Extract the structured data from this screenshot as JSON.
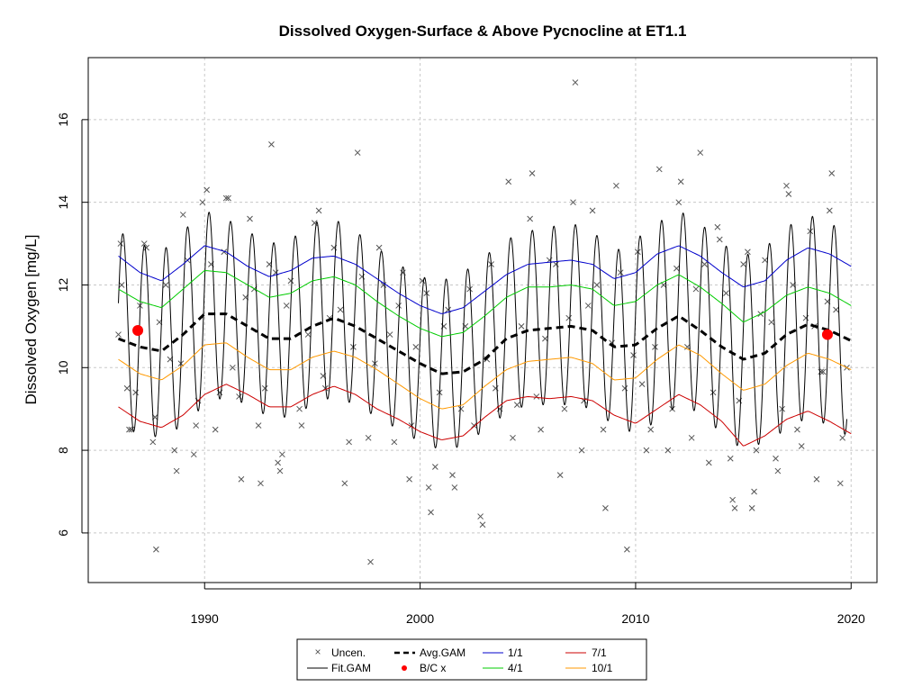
{
  "chart_data": {
    "type": "line",
    "title": "Dissolved Oxygen-Surface & Above Pycnocline at ET1.1",
    "xlabel": "",
    "ylabel": "Dissolved Oxygen [mg/L]",
    "xlim": [
      1984.6,
      2021.2
    ],
    "ylim": [
      4.8,
      17.5
    ],
    "x_ticks": [
      1990,
      2000,
      2010,
      2020
    ],
    "y_ticks": [
      6,
      8,
      10,
      12,
      14,
      16
    ],
    "grid": true,
    "legend_position": "bottom",
    "legend": [
      {
        "label": "Uncen.",
        "marker": "x",
        "color": "#555555"
      },
      {
        "label": "Fit.GAM",
        "marker": "line",
        "color": "#000000"
      },
      {
        "label": "Avg.GAM",
        "marker": "dashed",
        "color": "#000000"
      },
      {
        "label": "B/C x",
        "marker": "dot",
        "color": "#ff0000"
      },
      {
        "label": "1/1",
        "marker": "line",
        "color": "#0000cc"
      },
      {
        "label": "4/1",
        "marker": "line",
        "color": "#00cc00"
      },
      {
        "label": "7/1",
        "marker": "line",
        "color": "#cc0000"
      },
      {
        "label": "10/1",
        "marker": "line",
        "color": "#ff9900"
      }
    ],
    "series": [
      {
        "name": "Avg.GAM",
        "style": "dashed",
        "color": "#000000",
        "x": [
          1986,
          1987,
          1988,
          1989,
          1990,
          1991,
          1992,
          1993,
          1994,
          1995,
          1996,
          1997,
          1998,
          1999,
          2000,
          2001,
          2002,
          2003,
          2004,
          2005,
          2006,
          2007,
          2008,
          2009,
          2010,
          2011,
          2012,
          2013,
          2014,
          2015,
          2016,
          2017,
          2018,
          2019,
          2020
        ],
        "y": [
          10.7,
          10.5,
          10.4,
          10.8,
          11.3,
          11.3,
          11.0,
          10.7,
          10.7,
          11.0,
          11.2,
          11.0,
          10.7,
          10.4,
          10.1,
          9.85,
          9.9,
          10.2,
          10.7,
          10.9,
          10.95,
          11.0,
          10.9,
          10.5,
          10.55,
          10.95,
          11.25,
          10.9,
          10.5,
          10.2,
          10.35,
          10.8,
          11.05,
          10.9,
          10.65
        ]
      },
      {
        "name": "1/1",
        "style": "solid",
        "color": "#0000cc",
        "x": [
          1986,
          1987,
          1988,
          1989,
          1990,
          1991,
          1992,
          1993,
          1994,
          1995,
          1996,
          1997,
          1998,
          1999,
          2000,
          2001,
          2002,
          2003,
          2004,
          2005,
          2006,
          2007,
          2008,
          2009,
          2010,
          2011,
          2012,
          2013,
          2014,
          2015,
          2016,
          2017,
          2018,
          2019,
          2020
        ],
        "y": [
          12.7,
          12.3,
          12.1,
          12.5,
          12.95,
          12.8,
          12.45,
          12.2,
          12.35,
          12.65,
          12.7,
          12.5,
          12.15,
          11.8,
          11.5,
          11.3,
          11.45,
          11.85,
          12.25,
          12.5,
          12.55,
          12.6,
          12.5,
          12.15,
          12.3,
          12.75,
          12.95,
          12.7,
          12.3,
          11.95,
          12.1,
          12.6,
          12.9,
          12.75,
          12.45
        ]
      },
      {
        "name": "4/1",
        "style": "solid",
        "color": "#00cc00",
        "x": [
          1986,
          1987,
          1988,
          1989,
          1990,
          1991,
          1992,
          1993,
          1994,
          1995,
          1996,
          1997,
          1998,
          1999,
          2000,
          2001,
          2002,
          2003,
          2004,
          2005,
          2006,
          2007,
          2008,
          2009,
          2010,
          2011,
          2012,
          2013,
          2014,
          2015,
          2016,
          2017,
          2018,
          2019,
          2020
        ],
        "y": [
          11.9,
          11.6,
          11.45,
          11.9,
          12.35,
          12.3,
          12.0,
          11.7,
          11.8,
          12.1,
          12.2,
          12.0,
          11.6,
          11.25,
          10.95,
          10.75,
          10.85,
          11.25,
          11.7,
          11.95,
          11.95,
          12.0,
          11.9,
          11.5,
          11.6,
          12.0,
          12.25,
          11.95,
          11.55,
          11.1,
          11.35,
          11.75,
          11.95,
          11.8,
          11.5
        ]
      },
      {
        "name": "7/1",
        "style": "solid",
        "color": "#cc0000",
        "x": [
          1986,
          1987,
          1988,
          1989,
          1990,
          1991,
          1992,
          1993,
          1994,
          1995,
          1996,
          1997,
          1998,
          1999,
          2000,
          2001,
          2002,
          2003,
          2004,
          2005,
          2006,
          2007,
          2008,
          2009,
          2010,
          2011,
          2012,
          2013,
          2014,
          2015,
          2016,
          2017,
          2018,
          2019,
          2020
        ],
        "y": [
          9.05,
          8.7,
          8.55,
          8.85,
          9.35,
          9.6,
          9.35,
          9.05,
          9.05,
          9.35,
          9.55,
          9.35,
          9.0,
          8.75,
          8.45,
          8.25,
          8.35,
          8.8,
          9.2,
          9.3,
          9.25,
          9.3,
          9.2,
          8.85,
          8.65,
          9.0,
          9.35,
          9.1,
          8.7,
          8.1,
          8.35,
          8.75,
          8.95,
          8.7,
          8.4
        ]
      },
      {
        "name": "10/1",
        "style": "solid",
        "color": "#ff9900",
        "x": [
          1986,
          1987,
          1988,
          1989,
          1990,
          1991,
          1992,
          1993,
          1994,
          1995,
          1996,
          1997,
          1998,
          1999,
          2000,
          2001,
          2002,
          2003,
          2004,
          2005,
          2006,
          2007,
          2008,
          2009,
          2010,
          2011,
          2012,
          2013,
          2014,
          2015,
          2016,
          2017,
          2018,
          2019,
          2020
        ],
        "y": [
          10.2,
          9.85,
          9.7,
          10.05,
          10.55,
          10.6,
          10.25,
          9.95,
          9.95,
          10.25,
          10.4,
          10.25,
          9.95,
          9.6,
          9.25,
          9.0,
          9.1,
          9.55,
          9.95,
          10.15,
          10.2,
          10.25,
          10.1,
          9.7,
          9.75,
          10.2,
          10.55,
          10.3,
          9.85,
          9.45,
          9.6,
          10.05,
          10.35,
          10.2,
          9.95
        ]
      },
      {
        "name": "Fit.GAM",
        "style": "solid",
        "color": "#000000",
        "seasonal_min_month": 8.5,
        "x": [
          1986,
          1987,
          1988,
          1989,
          1990,
          1991,
          1992,
          1993,
          1994,
          1995,
          1996,
          1997,
          1998,
          1999,
          2000,
          2001,
          2002,
          2003,
          2004,
          2005,
          2006,
          2007,
          2008,
          2009,
          2010,
          2011,
          2012,
          2013,
          2014,
          2015,
          2016,
          2017,
          2018,
          2019,
          2020
        ],
        "peak": [
          13.3,
          13.0,
          12.8,
          13.3,
          13.8,
          13.6,
          13.3,
          13.0,
          13.1,
          13.5,
          13.6,
          13.3,
          12.9,
          12.5,
          12.2,
          12.1,
          12.3,
          12.7,
          13.1,
          13.3,
          13.4,
          13.5,
          13.3,
          12.8,
          13.1,
          13.5,
          13.8,
          13.5,
          13.0,
          12.7,
          12.9,
          13.4,
          13.7,
          13.5,
          13.2
        ],
        "trough": [
          8.6,
          8.4,
          8.3,
          8.6,
          9.1,
          9.3,
          9.1,
          8.8,
          8.8,
          9.1,
          9.3,
          9.1,
          8.8,
          8.5,
          8.2,
          8.0,
          8.1,
          8.5,
          8.9,
          9.1,
          9.1,
          9.1,
          9.0,
          8.6,
          8.4,
          8.7,
          9.1,
          8.9,
          8.4,
          8.0,
          8.2,
          8.5,
          8.8,
          8.6,
          8.3
        ]
      }
    ],
    "uncensored_points": [
      [
        1986.0,
        10.8
      ],
      [
        1986.1,
        13.0
      ],
      [
        1986.15,
        12.0
      ],
      [
        1986.4,
        9.5
      ],
      [
        1986.5,
        8.5
      ],
      [
        1986.6,
        8.5
      ],
      [
        1986.8,
        9.4
      ],
      [
        1987.0,
        11.5
      ],
      [
        1987.2,
        13.0
      ],
      [
        1987.3,
        12.9
      ],
      [
        1987.6,
        8.2
      ],
      [
        1987.7,
        8.8
      ],
      [
        1987.75,
        5.6
      ],
      [
        1987.9,
        11.1
      ],
      [
        1988.2,
        12.0
      ],
      [
        1988.4,
        10.2
      ],
      [
        1988.6,
        8.0
      ],
      [
        1988.7,
        7.5
      ],
      [
        1988.9,
        10.1
      ],
      [
        1989.0,
        13.7
      ],
      [
        1989.2,
        12.6
      ],
      [
        1989.5,
        7.9
      ],
      [
        1989.6,
        8.6
      ],
      [
        1989.7,
        9.2
      ],
      [
        1989.9,
        14.0
      ],
      [
        1990.1,
        14.3
      ],
      [
        1990.3,
        12.5
      ],
      [
        1990.5,
        8.5
      ],
      [
        1990.7,
        9.4
      ],
      [
        1990.9,
        12.8
      ],
      [
        1991.0,
        14.1
      ],
      [
        1991.1,
        14.1
      ],
      [
        1991.3,
        10.0
      ],
      [
        1991.6,
        9.3
      ],
      [
        1991.7,
        7.3
      ],
      [
        1991.9,
        11.7
      ],
      [
        1992.1,
        13.6
      ],
      [
        1992.3,
        11.9
      ],
      [
        1992.5,
        8.6
      ],
      [
        1992.6,
        7.2
      ],
      [
        1992.8,
        9.5
      ],
      [
        1993.0,
        12.5
      ],
      [
        1993.1,
        15.4
      ],
      [
        1993.3,
        12.3
      ],
      [
        1993.4,
        7.7
      ],
      [
        1993.5,
        7.5
      ],
      [
        1993.6,
        7.9
      ],
      [
        1993.8,
        11.5
      ],
      [
        1994.0,
        12.1
      ],
      [
        1994.4,
        9.0
      ],
      [
        1994.5,
        8.6
      ],
      [
        1994.8,
        10.8
      ],
      [
        1995.1,
        13.5
      ],
      [
        1995.3,
        13.8
      ],
      [
        1995.5,
        9.8
      ],
      [
        1995.6,
        9.5
      ],
      [
        1995.8,
        11.2
      ],
      [
        1996.0,
        12.9
      ],
      [
        1996.3,
        11.4
      ],
      [
        1996.5,
        7.2
      ],
      [
        1996.7,
        8.2
      ],
      [
        1996.9,
        10.5
      ],
      [
        1997.1,
        15.2
      ],
      [
        1997.3,
        12.2
      ],
      [
        1997.6,
        8.3
      ],
      [
        1997.7,
        5.3
      ],
      [
        1997.9,
        10.1
      ],
      [
        1998.1,
        12.9
      ],
      [
        1998.3,
        12.0
      ],
      [
        1998.6,
        10.8
      ],
      [
        1998.8,
        8.2
      ],
      [
        1999.0,
        11.5
      ],
      [
        1999.2,
        12.3
      ],
      [
        1999.5,
        7.3
      ],
      [
        1999.6,
        8.6
      ],
      [
        1999.8,
        10.5
      ],
      [
        2000.1,
        12.1
      ],
      [
        2000.3,
        11.8
      ],
      [
        2000.4,
        7.1
      ],
      [
        2000.5,
        6.5
      ],
      [
        2000.7,
        7.6
      ],
      [
        2000.9,
        9.4
      ],
      [
        2001.1,
        11.0
      ],
      [
        2001.3,
        11.4
      ],
      [
        2001.5,
        7.4
      ],
      [
        2001.6,
        7.1
      ],
      [
        2001.9,
        9.0
      ],
      [
        2002.1,
        11.0
      ],
      [
        2002.3,
        11.9
      ],
      [
        2002.5,
        8.6
      ],
      [
        2002.8,
        6.4
      ],
      [
        2002.9,
        6.2
      ],
      [
        2003.1,
        10.2
      ],
      [
        2003.3,
        12.5
      ],
      [
        2003.5,
        9.5
      ],
      [
        2003.7,
        9.0
      ],
      [
        2004.1,
        14.5
      ],
      [
        2004.3,
        8.3
      ],
      [
        2004.5,
        9.1
      ],
      [
        2004.7,
        11.0
      ],
      [
        2005.1,
        13.6
      ],
      [
        2005.2,
        14.7
      ],
      [
        2005.4,
        9.3
      ],
      [
        2005.6,
        8.5
      ],
      [
        2005.8,
        10.7
      ],
      [
        2006.0,
        12.6
      ],
      [
        2006.3,
        12.5
      ],
      [
        2006.5,
        7.4
      ],
      [
        2006.7,
        9.0
      ],
      [
        2006.9,
        11.2
      ],
      [
        2007.1,
        14.0
      ],
      [
        2007.2,
        16.9
      ],
      [
        2007.5,
        8.0
      ],
      [
        2007.6,
        9.2
      ],
      [
        2007.8,
        11.5
      ],
      [
        2008.0,
        13.8
      ],
      [
        2008.2,
        12.0
      ],
      [
        2008.5,
        8.5
      ],
      [
        2008.6,
        6.6
      ],
      [
        2008.9,
        10.6
      ],
      [
        2009.1,
        14.4
      ],
      [
        2009.3,
        12.3
      ],
      [
        2009.5,
        9.5
      ],
      [
        2009.6,
        5.6
      ],
      [
        2009.9,
        10.3
      ],
      [
        2010.1,
        12.8
      ],
      [
        2010.3,
        9.6
      ],
      [
        2010.5,
        8.0
      ],
      [
        2010.7,
        8.5
      ],
      [
        2010.9,
        10.5
      ],
      [
        2011.1,
        14.8
      ],
      [
        2011.3,
        12.0
      ],
      [
        2011.5,
        8.0
      ],
      [
        2011.7,
        9.0
      ],
      [
        2011.9,
        12.4
      ],
      [
        2012.0,
        14.0
      ],
      [
        2012.1,
        14.5
      ],
      [
        2012.4,
        10.5
      ],
      [
        2012.6,
        8.3
      ],
      [
        2012.8,
        11.9
      ],
      [
        2013.0,
        15.2
      ],
      [
        2013.2,
        12.5
      ],
      [
        2013.4,
        7.7
      ],
      [
        2013.6,
        9.4
      ],
      [
        2013.8,
        13.4
      ],
      [
        2013.9,
        13.1
      ],
      [
        2014.2,
        11.8
      ],
      [
        2014.4,
        7.8
      ],
      [
        2014.5,
        6.8
      ],
      [
        2014.6,
        6.6
      ],
      [
        2014.8,
        9.2
      ],
      [
        2015.0,
        12.5
      ],
      [
        2015.2,
        12.8
      ],
      [
        2015.4,
        6.6
      ],
      [
        2015.5,
        7.0
      ],
      [
        2015.6,
        8.0
      ],
      [
        2015.8,
        11.3
      ],
      [
        2016.0,
        12.6
      ],
      [
        2016.3,
        11.1
      ],
      [
        2016.5,
        7.8
      ],
      [
        2016.6,
        7.5
      ],
      [
        2016.8,
        9.0
      ],
      [
        2017.0,
        14.4
      ],
      [
        2017.1,
        14.2
      ],
      [
        2017.3,
        12.0
      ],
      [
        2017.5,
        8.5
      ],
      [
        2017.7,
        8.1
      ],
      [
        2017.9,
        11.2
      ],
      [
        2018.1,
        13.3
      ],
      [
        2018.3,
        11.0
      ],
      [
        2018.4,
        7.3
      ],
      [
        2018.6,
        9.9
      ],
      [
        2018.7,
        9.9
      ],
      [
        2018.9,
        11.6
      ],
      [
        2019.0,
        13.8
      ],
      [
        2019.1,
        14.7
      ],
      [
        2019.3,
        11.4
      ],
      [
        2019.5,
        7.2
      ],
      [
        2019.6,
        8.3
      ],
      [
        2019.8,
        10.0
      ]
    ],
    "bc_points": [
      [
        1986.9,
        10.9
      ],
      [
        2018.9,
        10.8
      ]
    ]
  }
}
